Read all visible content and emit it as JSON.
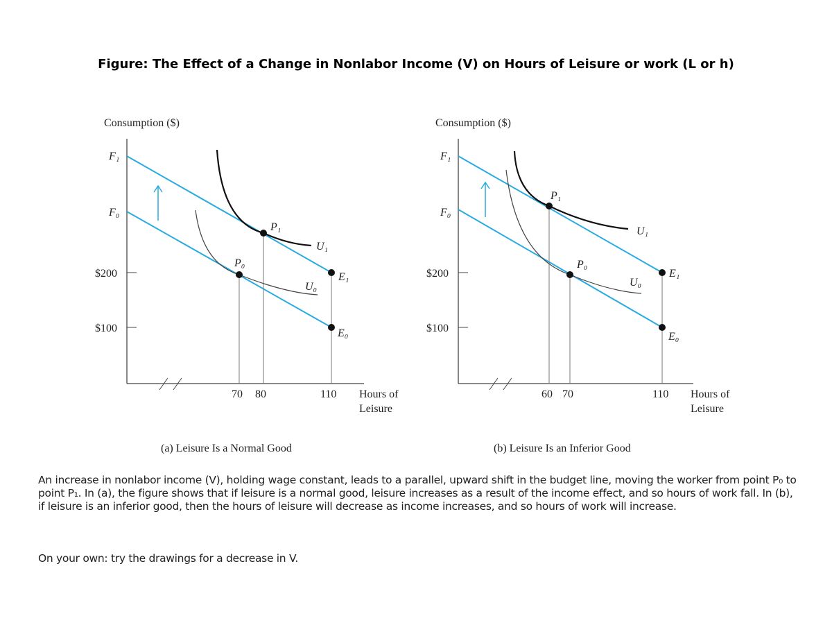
{
  "title": "Figure: The Effect of a Change in Nonlabor Income (V) on Hours of Leisure or work (L or h)",
  "colors": {
    "budget_line": "#29abe2",
    "curve": "#222222"
  },
  "panel_a": {
    "y_label": "Consumption ($)",
    "x_label_line1": "Hours of",
    "x_label_line2": "Leisure",
    "y_ticks": [
      "F₁",
      "F₀",
      "$200",
      "$100"
    ],
    "x_ticks": [
      "70",
      "80",
      "110"
    ],
    "points": {
      "P1": "P₁",
      "P0": "P₀",
      "E1": "E₁",
      "E0": "E₀"
    },
    "curves": {
      "U1": "U₁",
      "U0": "U₀"
    },
    "caption": "(a) Leisure Is a Normal Good"
  },
  "panel_b": {
    "y_label": "Consumption ($)",
    "x_label_line1": "Hours of",
    "x_label_line2": "Leisure",
    "y_ticks": [
      "F₁",
      "F₀",
      "$200",
      "$100"
    ],
    "x_ticks": [
      "60",
      "70",
      "110"
    ],
    "points": {
      "P1": "P₁",
      "P0": "P₀",
      "E1": "E₁",
      "E0": "E₀"
    },
    "curves": {
      "U1": "U₁",
      "U0": "U₀"
    },
    "caption": "(b) Leisure Is an Inferior Good"
  },
  "paragraph": "An increase in nonlabor income (V), holding wage constant, leads to a parallel, upward shift in the budget line, moving the worker from point P₀ to point P₁. In (a), the figure shows that if leisure is a normal good, leisure increases as a result of the income effect, and so hours of work fall.  In (b), if leisure is an inferior good, then the hours of leisure will decrease as income increases, and so hours of work will increase.",
  "note": "On your own: try the drawings for a decrease in V."
}
